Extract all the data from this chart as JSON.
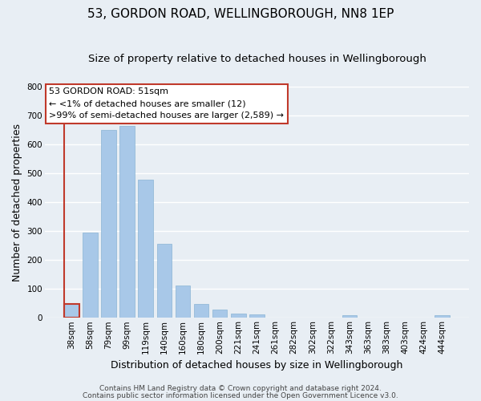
{
  "title": "53, GORDON ROAD, WELLINGBOROUGH, NN8 1EP",
  "subtitle": "Size of property relative to detached houses in Wellingborough",
  "xlabel": "Distribution of detached houses by size in Wellingborough",
  "ylabel": "Number of detached properties",
  "categories": [
    "38sqm",
    "58sqm",
    "79sqm",
    "99sqm",
    "119sqm",
    "140sqm",
    "160sqm",
    "180sqm",
    "200sqm",
    "221sqm",
    "241sqm",
    "261sqm",
    "282sqm",
    "302sqm",
    "322sqm",
    "343sqm",
    "363sqm",
    "383sqm",
    "403sqm",
    "424sqm",
    "444sqm"
  ],
  "values": [
    47,
    295,
    650,
    665,
    478,
    255,
    113,
    48,
    29,
    15,
    12,
    0,
    0,
    0,
    0,
    10,
    0,
    0,
    0,
    0,
    8
  ],
  "bar_color": "#a8c8e8",
  "property_bar_index": 0,
  "property_bar_color": "#c0392b",
  "annotation_title": "53 GORDON ROAD: 51sqm",
  "annotation_line1": "← <1% of detached houses are smaller (12)",
  "annotation_line2": ">99% of semi-detached houses are larger (2,589) →",
  "annotation_box_color": "#ffffff",
  "annotation_box_edge_color": "#c0392b",
  "ylim": [
    0,
    800
  ],
  "yticks": [
    0,
    100,
    200,
    300,
    400,
    500,
    600,
    700,
    800
  ],
  "footer1": "Contains HM Land Registry data © Crown copyright and database right 2024.",
  "footer2": "Contains public sector information licensed under the Open Government Licence v3.0.",
  "background_color": "#e8eef4",
  "grid_color": "#ffffff",
  "title_fontsize": 11,
  "subtitle_fontsize": 9.5,
  "axis_label_fontsize": 9,
  "tick_fontsize": 7.5,
  "footer_fontsize": 6.5,
  "annotation_fontsize": 8
}
